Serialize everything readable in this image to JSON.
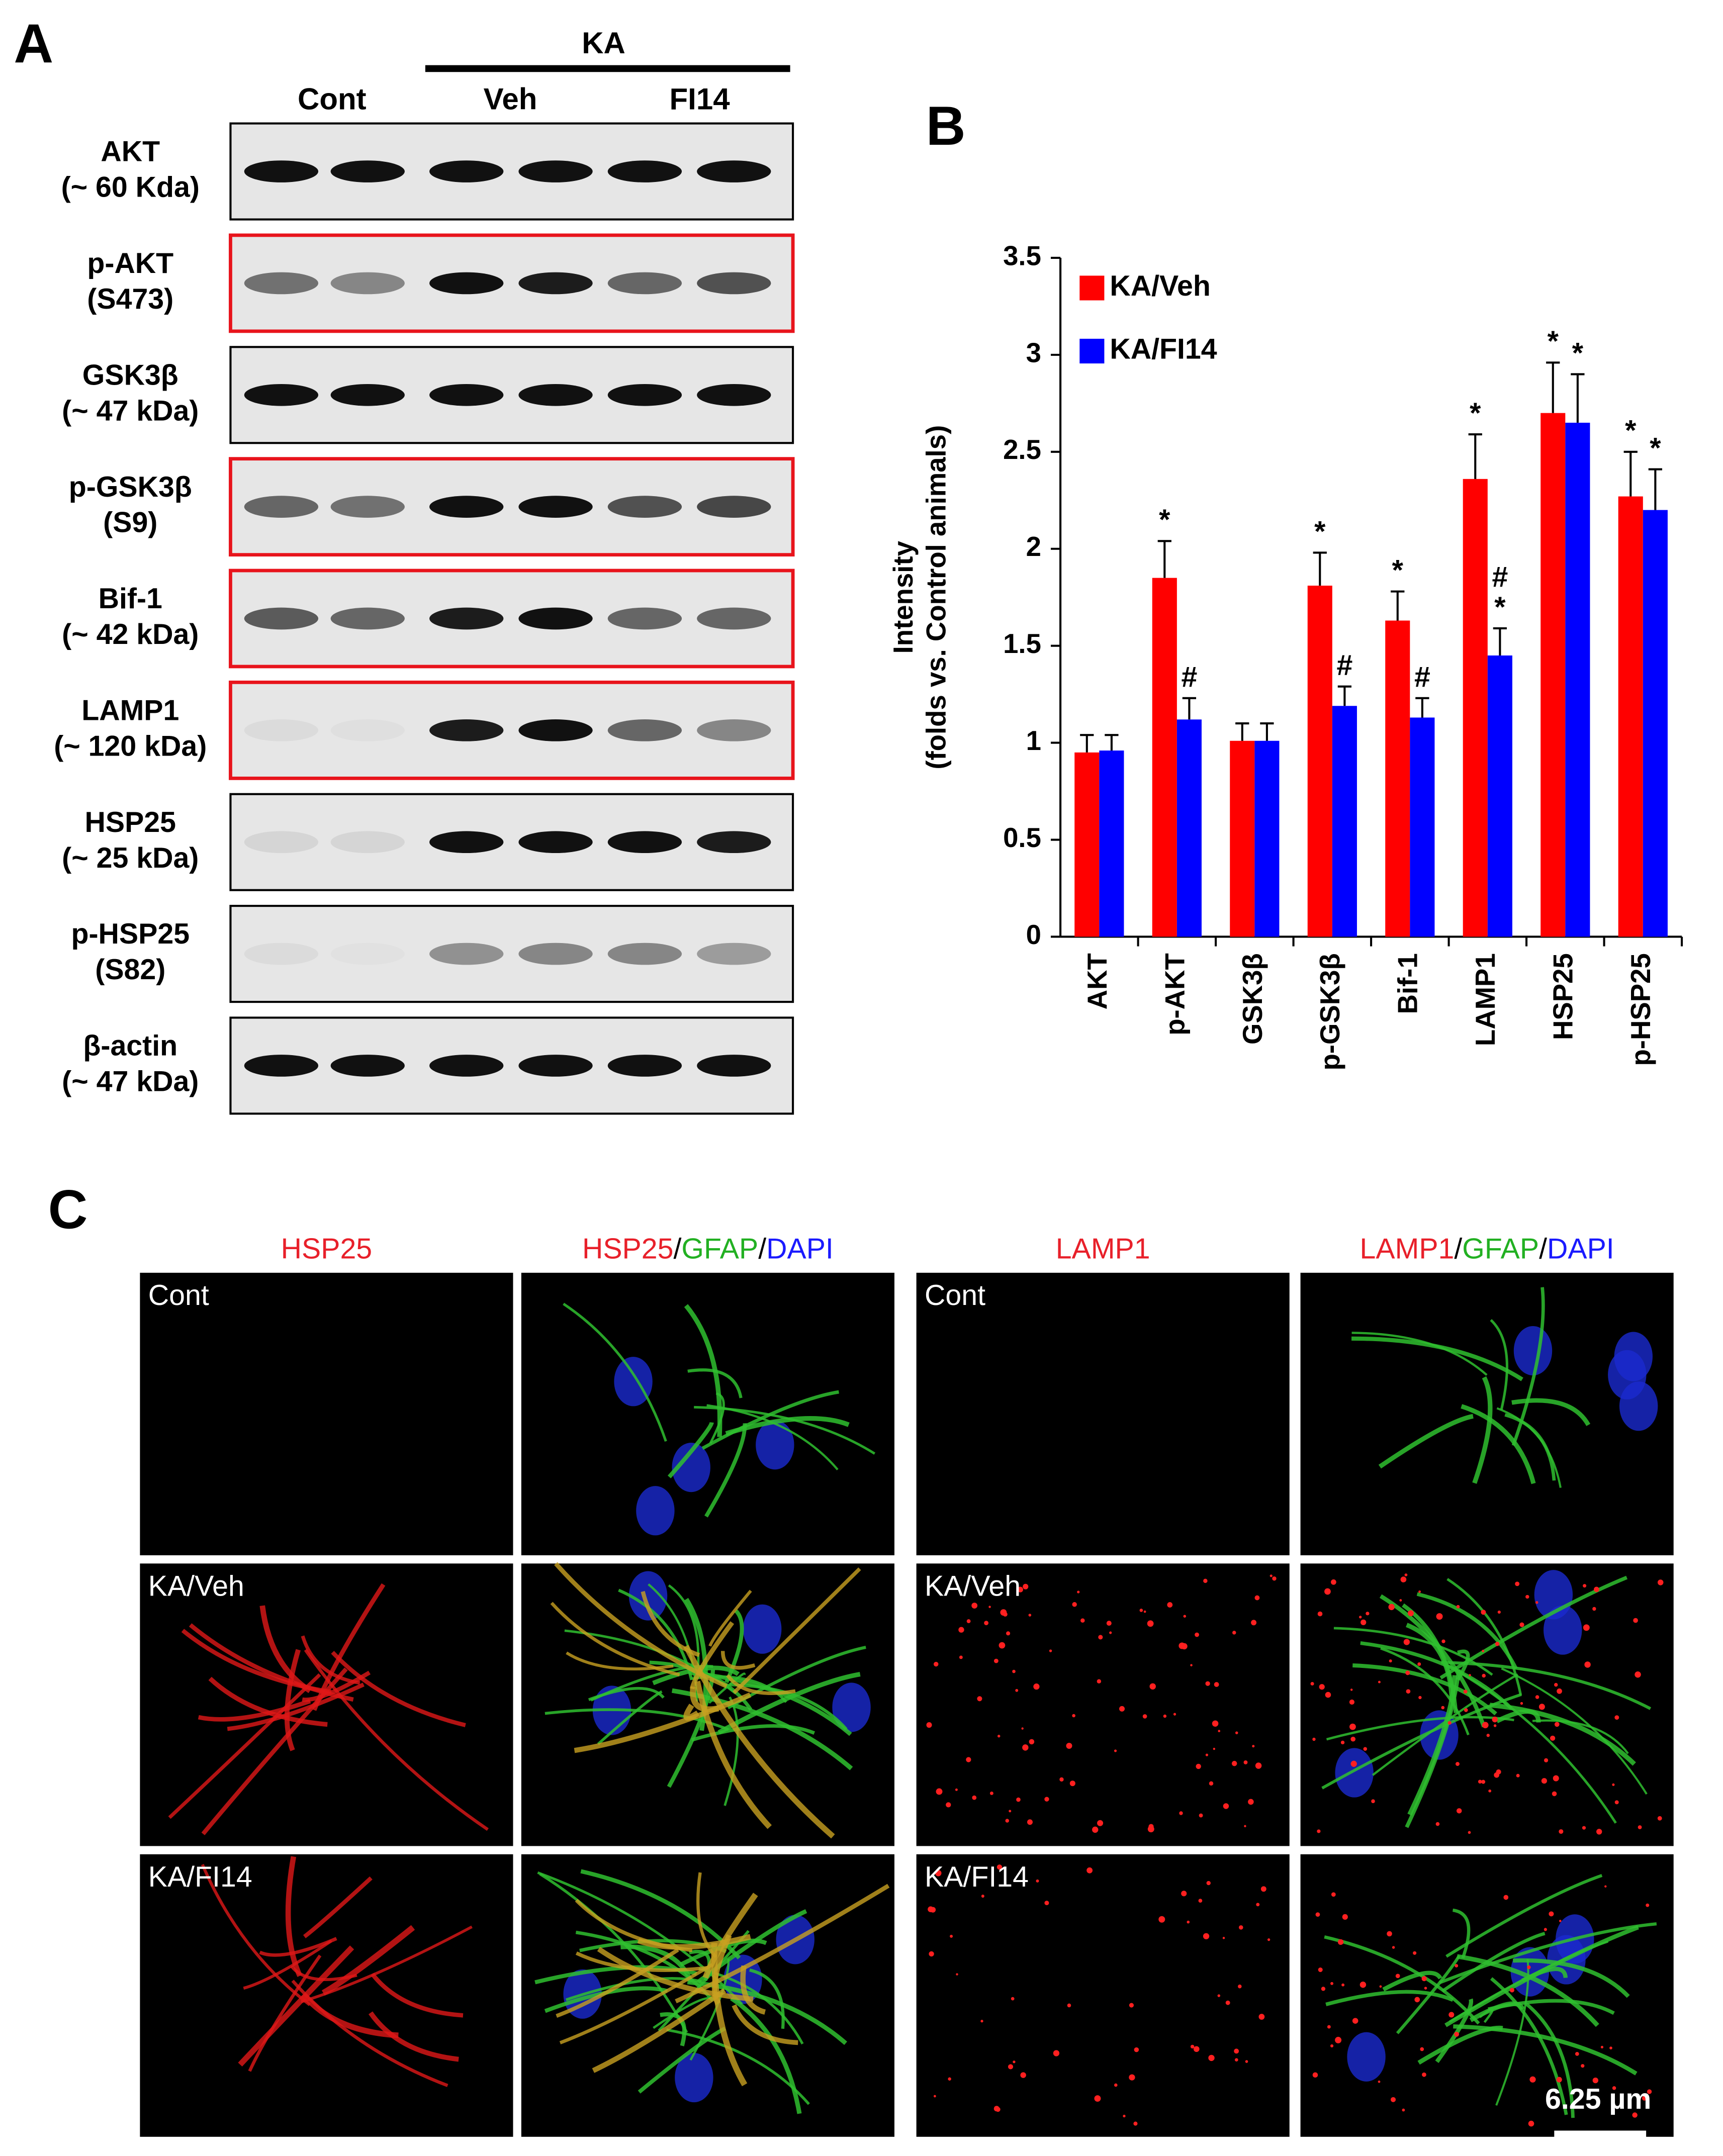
{
  "panel_labels": [
    "A",
    "B",
    "C"
  ],
  "blot": {
    "group_label": "KA",
    "lanes": [
      "Cont",
      "Veh",
      "FI14"
    ],
    "rows": [
      {
        "name": "AKT",
        "size": "(~ 60 Kda)",
        "highlight": false
      },
      {
        "name": "p-AKT",
        "size": "(S473)",
        "highlight": true
      },
      {
        "name": "GSK3β",
        "size": "(~ 47 kDa)",
        "highlight": false
      },
      {
        "name": "p-GSK3β",
        "size": "(S9)",
        "highlight": true
      },
      {
        "name": "Bif-1",
        "size": "(~ 42 kDa)",
        "highlight": true
      },
      {
        "name": "LAMP1",
        "size": "(~ 120 kDa)",
        "highlight": true
      },
      {
        "name": "HSP25",
        "size": "(~ 25 kDa)",
        "highlight": false
      },
      {
        "name": "p-HSP25",
        "size": "(S82)",
        "highlight": false
      },
      {
        "name": "β-actin",
        "size": "(~ 47 kDa)",
        "highlight": false
      }
    ]
  },
  "chart_data": {
    "type": "bar",
    "ylabel": [
      "Intensity",
      "(folds vs. Control animals)"
    ],
    "categories": [
      "AKT",
      "p-AKT",
      "GSK3β",
      "p-GSK3β",
      "Bif-1",
      "LAMP1",
      "HSP25",
      "p-HSP25"
    ],
    "series": [
      {
        "name": "KA/Veh",
        "color": "#ff0000",
        "values": [
          0.95,
          1.85,
          1.01,
          1.81,
          1.63,
          2.36,
          2.7,
          2.27
        ],
        "errors": [
          0.09,
          0.19,
          0.09,
          0.17,
          0.15,
          0.23,
          0.26,
          0.23
        ],
        "marks": [
          [],
          [
            "*"
          ],
          [],
          [
            "*"
          ],
          [
            "*"
          ],
          [
            "*"
          ],
          [
            "*"
          ],
          [
            "*"
          ]
        ]
      },
      {
        "name": "KA/FI14",
        "color": "#0000ff",
        "values": [
          0.96,
          1.12,
          1.01,
          1.19,
          1.13,
          1.45,
          2.65,
          2.2
        ],
        "errors": [
          0.08,
          0.11,
          0.09,
          0.1,
          0.1,
          0.14,
          0.25,
          0.21
        ],
        "marks": [
          [],
          [
            "#"
          ],
          [],
          [
            "#"
          ],
          [
            "#"
          ],
          [
            "#",
            "*"
          ],
          [
            "*"
          ],
          [
            "*"
          ]
        ]
      }
    ],
    "ylim": [
      0,
      3.5
    ],
    "yticks": [
      0,
      0.5,
      1,
      1.5,
      2,
      2.5,
      3,
      3.5
    ],
    "grid": false,
    "legend": "top-left"
  },
  "micrographs": {
    "headers": [
      [
        {
          "text": "HSP25",
          "color": "#e8202a"
        }
      ],
      [
        {
          "text": "HSP25",
          "color": "#e8202a"
        },
        {
          "text": "/",
          "color": "#000000"
        },
        {
          "text": "GFAP",
          "color": "#22b022"
        },
        {
          "text": "/",
          "color": "#000000"
        },
        {
          "text": "DAPI",
          "color": "#1a1aff"
        }
      ],
      [
        {
          "text": "LAMP1",
          "color": "#e8202a"
        }
      ],
      [
        {
          "text": "LAMP1",
          "color": "#e8202a"
        },
        {
          "text": "/",
          "color": "#000000"
        },
        {
          "text": "GFAP",
          "color": "#22b022"
        },
        {
          "text": "/",
          "color": "#000000"
        },
        {
          "text": "DAPI",
          "color": "#1a1aff"
        }
      ]
    ],
    "row_labels": [
      "Cont",
      "KA/Veh",
      "KA/FI14"
    ],
    "scale_bar": "6.25 µm"
  }
}
